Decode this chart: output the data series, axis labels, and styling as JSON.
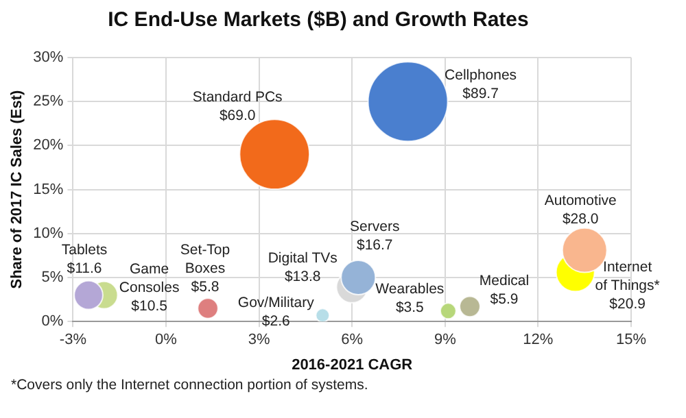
{
  "chart_data": {
    "type": "bubble",
    "title": "IC End-Use Markets ($B) and Growth Rates",
    "xlabel": "2016-2021 CAGR",
    "ylabel": "Share of 2017 IC Sales (Est)",
    "xlim": [
      -3,
      15
    ],
    "xticks": [
      {
        "value": -3,
        "label": "-3%"
      },
      {
        "value": 0,
        "label": "0%"
      },
      {
        "value": 3,
        "label": "3%"
      },
      {
        "value": 6,
        "label": "6%"
      },
      {
        "value": 9,
        "label": "9%"
      },
      {
        "value": 12,
        "label": "12%"
      },
      {
        "value": 15,
        "label": "15%"
      }
    ],
    "ylim": [
      0,
      30
    ],
    "yticks": [
      {
        "value": 0,
        "label": "0%"
      },
      {
        "value": 5,
        "label": "5%"
      },
      {
        "value": 10,
        "label": "10%"
      },
      {
        "value": 15,
        "label": "15%"
      },
      {
        "value": 20,
        "label": "20%"
      },
      {
        "value": 25,
        "label": "25%"
      },
      {
        "value": 30,
        "label": "30%"
      }
    ],
    "grid": true,
    "series": [
      {
        "name": "Tablets",
        "color": "#b4a7d6",
        "x": [
          -2.5
        ],
        "values": [
          3.0
        ],
        "sizes": [
          11.6
        ],
        "value_labels": [
          "$11.6"
        ]
      },
      {
        "name": "Game Consoles",
        "color": "#c9dc8f",
        "x": [
          -2.0
        ],
        "values": [
          3.0
        ],
        "sizes": [
          10.5
        ],
        "value_labels": [
          "$10.5"
        ]
      },
      {
        "name": "Set-Top Boxes",
        "color": "#de7f7f",
        "x": [
          1.35
        ],
        "values": [
          1.5
        ],
        "sizes": [
          5.8
        ],
        "value_labels": [
          "$5.8"
        ]
      },
      {
        "name": "Gov/Military",
        "color": "#b7dee8",
        "x": [
          5.05
        ],
        "values": [
          0.7
        ],
        "sizes": [
          2.6
        ],
        "value_labels": [
          "$2.6"
        ]
      },
      {
        "name": "Servers",
        "color": "#95b3d7",
        "x": [
          6.2
        ],
        "values": [
          5.0
        ],
        "sizes": [
          16.7
        ],
        "value_labels": [
          "$16.7"
        ]
      },
      {
        "name": "Digital TVs",
        "color": "#d9d9d9",
        "x": [
          6.0
        ],
        "values": [
          3.9
        ],
        "sizes": [
          13.8
        ],
        "value_labels": [
          "$13.8"
        ]
      },
      {
        "name": "Cellphones",
        "color": "#4a7fcf",
        "x": [
          7.8
        ],
        "values": [
          25.0
        ],
        "sizes": [
          89.7
        ],
        "value_labels": [
          "$89.7"
        ]
      },
      {
        "name": "Standard PCs",
        "color": "#f26a1b",
        "x": [
          3.5
        ],
        "values": [
          19.0
        ],
        "sizes": [
          69.0
        ],
        "value_labels": [
          "$69.0"
        ]
      },
      {
        "name": "Wearables",
        "color": "#b7d77a",
        "x": [
          9.1
        ],
        "values": [
          1.2
        ],
        "sizes": [
          3.5
        ],
        "value_labels": [
          "$3.5"
        ]
      },
      {
        "name": "Medical",
        "color": "#b8b894",
        "x": [
          9.8
        ],
        "values": [
          1.7
        ],
        "sizes": [
          5.9
        ],
        "value_labels": [
          "$5.9"
        ]
      },
      {
        "name": "Automotive",
        "color": "#f9b68e",
        "x": [
          13.5
        ],
        "values": [
          8.1
        ],
        "sizes": [
          28.0
        ],
        "value_labels": [
          "$28.0"
        ]
      },
      {
        "name": "Internet of Things*",
        "color": "#ffff00",
        "x": [
          13.2
        ],
        "values": [
          5.6
        ],
        "sizes": [
          20.9
        ],
        "value_labels": [
          "$20.9"
        ]
      }
    ],
    "annotations": [
      "*Covers only the Internet connection portion of systems."
    ]
  }
}
